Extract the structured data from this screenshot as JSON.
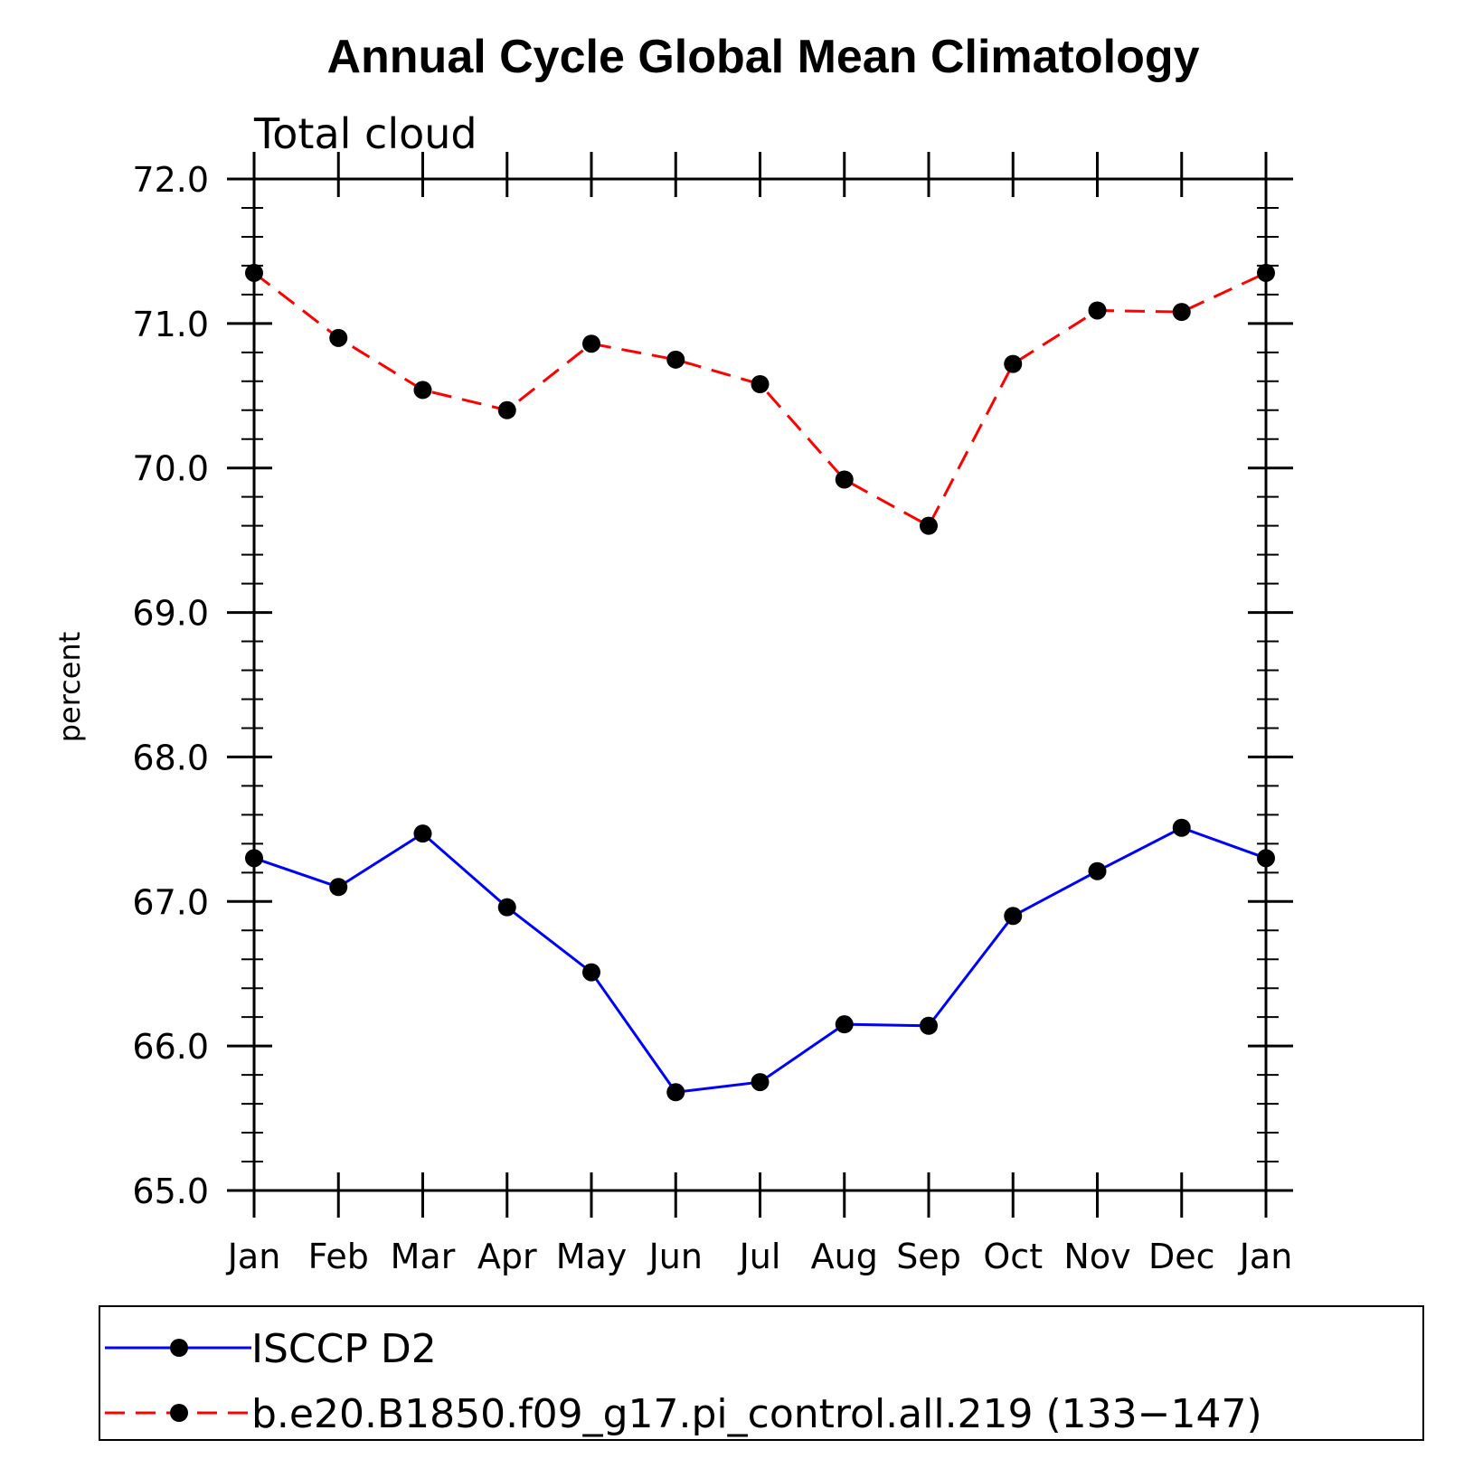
{
  "chart_data": {
    "type": "line",
    "title": "Annual Cycle Global Mean Climatology",
    "subtitle": "Total cloud",
    "xlabel": "",
    "ylabel": "percent",
    "categories": [
      "Jan",
      "Feb",
      "Mar",
      "Apr",
      "May",
      "Jun",
      "Jul",
      "Aug",
      "Sep",
      "Oct",
      "Nov",
      "Dec",
      "Jan"
    ],
    "ylim": [
      65.0,
      72.0
    ],
    "yticks": [
      "65.0",
      "66.0",
      "67.0",
      "68.0",
      "69.0",
      "70.0",
      "71.0",
      "72.0"
    ],
    "grid": false,
    "legend_position": "bottom",
    "series": [
      {
        "name": "ISCCP D2",
        "color": "#0000ff",
        "line_style": "solid",
        "marker": "filled-circle",
        "values": [
          67.3,
          67.1,
          67.47,
          66.96,
          66.51,
          65.68,
          65.75,
          66.15,
          66.14,
          66.9,
          67.21,
          67.51,
          67.3
        ]
      },
      {
        "name": "b.e20.B1850.f09_g17.pi_control.all.219 (133−147)",
        "color": "#ff0000",
        "line_style": "dashed",
        "marker": "filled-circle",
        "values": [
          71.35,
          70.9,
          70.54,
          70.4,
          70.86,
          70.75,
          70.58,
          69.92,
          69.6,
          70.72,
          71.09,
          71.08,
          71.35
        ]
      }
    ]
  }
}
